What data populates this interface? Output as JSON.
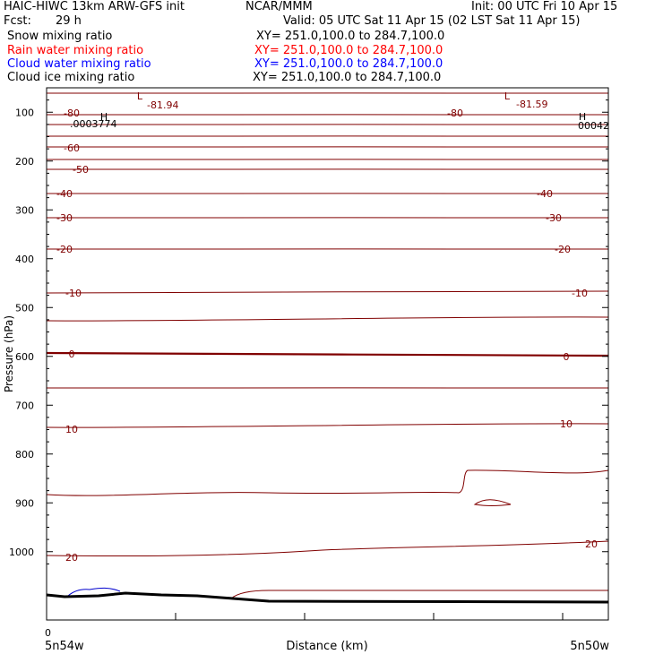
{
  "header": {
    "title_left": "HAIC-HIWC 13km ARW-GFS init",
    "org": "NCAR/MMM",
    "init": "Init: 00 UTC Fri 10 Apr 15",
    "fcst_label": "Fcst:",
    "fcst_value": "29 h",
    "valid": "Valid: 05 UTC Sat 11 Apr 15 (02 LST Sat 11 Apr 15)"
  },
  "fields": [
    {
      "name": "Snow mixing ratio",
      "xy": "XY= 251.0,100.0 to 284.7,100.0",
      "color": "#000000"
    },
    {
      "name": "Rain water mixing ratio",
      "xy": "XY= 251.0,100.0 to 284.7,100.0",
      "color": "#ff0000"
    },
    {
      "name": "Cloud water mixing ratio",
      "xy": "XY= 251.0,100.0 to 284.7,100.0",
      "color": "#0000ff"
    },
    {
      "name": "Cloud ice mixing ratio",
      "xy": "XY= 251.0,100.0 to 284.7,100.0",
      "color": "#000000"
    }
  ],
  "chart_data": {
    "type": "line",
    "xlabel": "Distance (km)",
    "ylabel": "Pressure (hPa)",
    "x_left_tick": "0",
    "x_left_label": "5n54w",
    "x_right_label": "5n50w",
    "ylim": [
      1050,
      50
    ],
    "y_ticks": [
      100,
      200,
      300,
      400,
      500,
      600,
      700,
      800,
      900,
      1000
    ],
    "extremes": [
      {
        "type": "L",
        "value": "-81.94"
      },
      {
        "type": "L",
        "value": "-81.59"
      },
      {
        "type": "H",
        "value": ".0003774"
      },
      {
        "type": "H",
        "value": "00042"
      }
    ],
    "temperature_labels": [
      "-80",
      "-80",
      "-60",
      "-50",
      "-40",
      "-40",
      "-30",
      "-30",
      "-20",
      "-20",
      "-10",
      "-10",
      "0",
      "0",
      "10",
      "10",
      "20",
      "20"
    ],
    "colors": {
      "temperature": "#800000",
      "cloud_water": "#0000cd",
      "terrain": "#000000"
    }
  }
}
